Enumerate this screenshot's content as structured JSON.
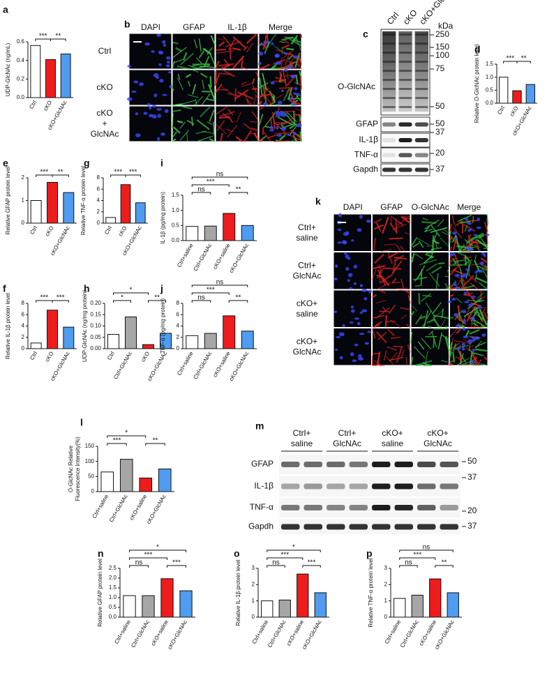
{
  "chart_data": [
    {
      "type": "bar",
      "label": "a",
      "ylabel": [
        "UDP-GlcNAc (ng/mL)"
      ],
      "categories": [
        "Ctrl",
        "cKO",
        "cKO+GlcNAc"
      ],
      "values": [
        0.56,
        0.41,
        0.47
      ],
      "colors": [
        "#ffffff",
        "#ee1c1c",
        "#4f9cf0"
      ],
      "ylim": [
        0,
        0.6
      ],
      "yticks": [
        {
          "value": 0,
          "label": "0.0"
        },
        0.2,
        0.4,
        0.6
      ],
      "significance": [
        {
          "pair": [
            0,
            1
          ],
          "text": "***"
        },
        {
          "pair": [
            1,
            2
          ],
          "text": "**"
        }
      ]
    },
    {
      "type": "bar",
      "label": "d",
      "ylabel": [
        "Relative O-GlcNAc protein level"
      ],
      "categories": [
        "Ctrl",
        "cKO",
        "cKO+GlcNAc"
      ],
      "values": [
        1.0,
        0.48,
        0.72
      ],
      "colors": [
        "#ffffff",
        "#ee1c1c",
        "#4f9cf0"
      ],
      "ylim": [
        0,
        1.5
      ],
      "yticks": [
        {
          "value": 0,
          "label": "0.0"
        },
        0.5,
        {
          "value": 1,
          "label": "1.0"
        },
        1.5
      ],
      "significance": [
        {
          "pair": [
            0,
            1
          ],
          "text": "***"
        },
        {
          "pair": [
            1,
            2
          ],
          "text": "**"
        }
      ]
    },
    {
      "type": "bar",
      "label": "e",
      "ylabel": [
        "Relative GFAP protein level"
      ],
      "categories": [
        "Ctrl",
        "cKO",
        "cKO+GlcNAc"
      ],
      "values": [
        1.0,
        1.8,
        1.35
      ],
      "colors": [
        "#ffffff",
        "#ee1c1c",
        "#4f9cf0"
      ],
      "ylim": [
        0,
        2
      ],
      "yticks": [
        0,
        1,
        2
      ],
      "significance": [
        {
          "pair": [
            0,
            1
          ],
          "text": "***"
        },
        {
          "pair": [
            1,
            2
          ],
          "text": "**"
        }
      ]
    },
    {
      "type": "bar",
      "label": "g",
      "ylabel": [
        "Relative TNF-α protein level"
      ],
      "categories": [
        "Ctrl",
        "cKO",
        "cKO+GlcNAc"
      ],
      "values": [
        1.0,
        6.8,
        3.6
      ],
      "colors": [
        "#ffffff",
        "#ee1c1c",
        "#4f9cf0"
      ],
      "ylim": [
        0,
        8
      ],
      "yticks": [
        0,
        2,
        4,
        6,
        8
      ],
      "significance": [
        {
          "pair": [
            0,
            1
          ],
          "text": "***"
        },
        {
          "pair": [
            1,
            2
          ],
          "text": "***"
        }
      ]
    },
    {
      "type": "bar",
      "label": "i",
      "ylabel": [
        "IL-1β (pg/mg protein)"
      ],
      "categories": [
        "Ctrl+saline",
        "Ctrl+GlcNAc",
        "cKO+saline",
        "cKO+GlcNAc"
      ],
      "values": [
        0.47,
        0.48,
        0.9,
        0.5
      ],
      "colors": [
        "#ffffff",
        "#a6a6a6",
        "#ee1c1c",
        "#4f9cf0"
      ],
      "ylim": [
        0,
        1.5
      ],
      "yticks": [
        {
          "value": 0,
          "label": "0.0"
        },
        0.5,
        {
          "value": 1,
          "label": "1.0"
        },
        1.5
      ],
      "significance": [
        {
          "pair": [
            0,
            3
          ],
          "text": "ns"
        },
        {
          "pair": [
            0,
            1
          ],
          "text": "ns"
        },
        {
          "pair": [
            0,
            2
          ],
          "text": "***"
        },
        {
          "pair": [
            2,
            3
          ],
          "text": "**"
        }
      ]
    },
    {
      "type": "bar",
      "label": "f",
      "ylabel": [
        "Relative IL-1β protein level"
      ],
      "categories": [
        "Ctrl",
        "cKO",
        "cKO+GlcNAc"
      ],
      "values": [
        1.0,
        6.8,
        3.8
      ],
      "colors": [
        "#ffffff",
        "#ee1c1c",
        "#4f9cf0"
      ],
      "ylim": [
        0,
        8
      ],
      "yticks": [
        0,
        2,
        4,
        6,
        8
      ],
      "significance": [
        {
          "pair": [
            0,
            1
          ],
          "text": "***"
        },
        {
          "pair": [
            1,
            2
          ],
          "text": "***"
        }
      ]
    },
    {
      "type": "bar",
      "label": "h",
      "ylabel": [
        "UDP-GlcNAc (ng/mg protein)"
      ],
      "categories": [
        "Ctrl",
        "Ctrl+GlcNAc",
        "cKO",
        "cKO+GlcNAc"
      ],
      "values": [
        0.063,
        0.14,
        0.018,
        0.068
      ],
      "colors": [
        "#ffffff",
        "#a6a6a6",
        "#ee1c1c",
        "#4f9cf0"
      ],
      "ylim": [
        0,
        0.2
      ],
      "yticks": [
        {
          "value": 0,
          "label": "0.00"
        },
        0.05,
        {
          "value": 0.1,
          "label": "0.10"
        },
        0.15,
        {
          "value": 0.2,
          "label": "0.20"
        }
      ],
      "significance": [
        {
          "pair": [
            0,
            1
          ],
          "text": "*"
        },
        {
          "pair": [
            0,
            2
          ],
          "text": "*"
        },
        {
          "pair": [
            2,
            3
          ],
          "text": "**"
        }
      ]
    },
    {
      "type": "bar",
      "label": "j",
      "ylabel": [
        "TNF-α (pg/mg protein)"
      ],
      "categories": [
        "Ctrl+saline",
        "Ctrl+GlcNAc",
        "cKO+saline",
        "cKO+GlcNAc"
      ],
      "values": [
        2.3,
        2.7,
        5.8,
        3.1
      ],
      "colors": [
        "#ffffff",
        "#a6a6a6",
        "#ee1c1c",
        "#4f9cf0"
      ],
      "ylim": [
        0,
        8
      ],
      "yticks": [
        0,
        2,
        4,
        6,
        8
      ],
      "significance": [
        {
          "pair": [
            0,
            3
          ],
          "text": "ns"
        },
        {
          "pair": [
            0,
            1
          ],
          "text": "ns"
        },
        {
          "pair": [
            0,
            2
          ],
          "text": "***"
        },
        {
          "pair": [
            2,
            3
          ],
          "text": "**"
        }
      ]
    },
    {
      "type": "bar",
      "label": "l",
      "ylabel": [
        "O-GlcNAc Relative",
        "Fluorescence Intensity(%)"
      ],
      "categories": [
        "Ctrl+saline",
        "Ctrl+GlcNAc",
        "cKO+saline",
        "cKO+GlcNAc"
      ],
      "values": [
        65,
        107,
        45,
        75
      ],
      "colors": [
        "#ffffff",
        "#a6a6a6",
        "#ee1c1c",
        "#4f9cf0"
      ],
      "ylim": [
        0,
        150
      ],
      "yticks": [
        0,
        50,
        100,
        150
      ],
      "significance": [
        {
          "pair": [
            0,
            1
          ],
          "text": "***"
        },
        {
          "pair": [
            0,
            2
          ],
          "text": "*"
        },
        {
          "pair": [
            2,
            3
          ],
          "text": "**"
        }
      ]
    },
    {
      "type": "bar",
      "label": "n",
      "ylabel": [
        "Relative GFAP protein level"
      ],
      "categories": [
        "Ctrl+saline",
        "Ctrl+GlcNAc",
        "cKO+saline",
        "cKO+GlcNAc"
      ],
      "values": [
        1.1,
        1.1,
        1.97,
        1.35
      ],
      "colors": [
        "#ffffff",
        "#a6a6a6",
        "#ee1c1c",
        "#4f9cf0"
      ],
      "ylim": [
        0,
        2.5
      ],
      "yticks": [
        {
          "value": 0,
          "label": "0.0"
        },
        0.5,
        {
          "value": 1,
          "label": "1.0"
        },
        1.5,
        {
          "value": 2,
          "label": "2.0"
        },
        2.5
      ],
      "significance": [
        {
          "pair": [
            0,
            3
          ],
          "text": "*"
        },
        {
          "pair": [
            0,
            1
          ],
          "text": "ns"
        },
        {
          "pair": [
            0,
            2
          ],
          "text": "***"
        },
        {
          "pair": [
            2,
            3
          ],
          "text": "***"
        }
      ]
    },
    {
      "type": "bar",
      "label": "o",
      "ylabel": [
        "Relative IL-1β protein level"
      ],
      "categories": [
        "Ctrl+saline",
        "Ctrl+GlcNAc",
        "cKO+saline",
        "cKO+GlcNAc"
      ],
      "values": [
        1.0,
        1.05,
        2.65,
        1.5
      ],
      "colors": [
        "#ffffff",
        "#a6a6a6",
        "#ee1c1c",
        "#4f9cf0"
      ],
      "ylim": [
        0,
        3
      ],
      "yticks": [
        0,
        1,
        2,
        3
      ],
      "significance": [
        {
          "pair": [
            0,
            3
          ],
          "text": "*"
        },
        {
          "pair": [
            0,
            1
          ],
          "text": "ns"
        },
        {
          "pair": [
            0,
            2
          ],
          "text": "***"
        },
        {
          "pair": [
            2,
            3
          ],
          "text": "***"
        }
      ]
    },
    {
      "type": "bar",
      "label": "p",
      "ylabel": [
        "Relative TNF-α protein level"
      ],
      "categories": [
        "Ctrl+saline",
        "Ctrl+GlcNAc",
        "cKO+saline",
        "cKO+GlcNAc"
      ],
      "values": [
        1.15,
        1.35,
        2.35,
        1.5
      ],
      "colors": [
        "#ffffff",
        "#a6a6a6",
        "#ee1c1c",
        "#4f9cf0"
      ],
      "ylim": [
        0,
        3
      ],
      "yticks": [
        0,
        1,
        2,
        3
      ],
      "significance": [
        {
          "pair": [
            0,
            3
          ],
          "text": "ns"
        },
        {
          "pair": [
            0,
            1
          ],
          "text": "ns"
        },
        {
          "pair": [
            0,
            2
          ],
          "text": "***"
        },
        {
          "pair": [
            2,
            3
          ],
          "text": "**"
        }
      ]
    }
  ],
  "images": [
    {
      "label": "b",
      "channels": [
        "DAPI",
        "GFAP",
        "IL-1β",
        "Merge"
      ],
      "channel_colors": [
        "#3a48ff",
        "#3fd24a",
        "#e0261e"
      ],
      "rows": [
        [
          "Ctrl"
        ],
        [
          "cKO"
        ],
        [
          "cKO",
          "+",
          "GlcNAc"
        ]
      ]
    },
    {
      "label": "k",
      "channels": [
        "DAPI",
        "GFAP",
        "O-GlcNAc",
        "Merge"
      ],
      "channel_colors": [
        "#3a48ff",
        "#e0261e",
        "#34c23c"
      ],
      "rows": [
        [
          "Ctrl+",
          "saline"
        ],
        [
          "Ctrl+",
          "GlcNAc"
        ],
        [
          "cKO+",
          "saline"
        ],
        [
          "cKO+",
          "GlcNAc"
        ]
      ]
    }
  ],
  "blots": [
    {
      "label": "c",
      "lanes": [
        "Ctrl",
        "cKO",
        "cKO+GlcNAc"
      ],
      "unit": "kDa",
      "rows": [
        {
          "name": "O-GlcNAc",
          "markers": [
            250,
            150,
            100,
            75,
            50
          ]
        },
        {
          "name": "GFAP",
          "markers": [
            50
          ]
        },
        {
          "name": "IL-1β",
          "markers": [
            37
          ]
        },
        {
          "name": "TNF-α",
          "markers": [
            20
          ]
        },
        {
          "name": "Gapdh",
          "markers": [
            37
          ]
        }
      ]
    },
    {
      "label": "m",
      "groups": [
        [
          "Ctrl+",
          "saline"
        ],
        [
          "Ctrl+",
          "GlcNAc"
        ],
        [
          "cKO+",
          "saline"
        ],
        [
          "cKO+",
          "GlcNAc"
        ]
      ],
      "rows": [
        {
          "name": "GFAP",
          "markers": [
            50
          ]
        },
        {
          "name": "IL-1β",
          "markers": [
            37
          ]
        },
        {
          "name": "TNF-α",
          "markers": [
            20
          ]
        },
        {
          "name": "Gapdh",
          "markers": [
            37
          ]
        }
      ]
    }
  ]
}
